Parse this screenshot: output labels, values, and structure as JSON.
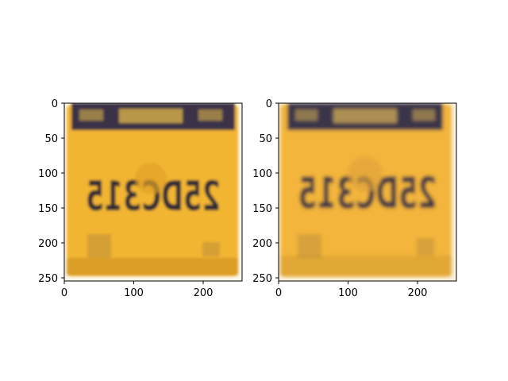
{
  "figure": {
    "panels": [
      {
        "id": "left",
        "image": {
          "plate_text": "25DC315",
          "plate_text_mirrored": true,
          "colors": {
            "plate": "#f2b531",
            "plate_shadow": "#c98a1c",
            "banner": "#3a3347",
            "banner_text": "#d8b04a",
            "text": "#2e2a35"
          }
        },
        "x_ticks": [
          "0",
          "100",
          "200"
        ],
        "y_ticks": [
          "0",
          "50",
          "100",
          "150",
          "200",
          "250"
        ]
      },
      {
        "id": "right",
        "image": {
          "plate_text": "25DC315",
          "plate_text_mirrored": true,
          "colors": {
            "plate": "#f3b53b",
            "plate_shadow": "#d19a32",
            "banner": "#3b3548",
            "banner_text": "#c9a656",
            "text": "#3b3443"
          }
        },
        "x_ticks": [
          "0",
          "100",
          "200"
        ],
        "y_ticks": [
          "0",
          "50",
          "100",
          "150",
          "200",
          "250"
        ]
      }
    ],
    "x_range": [
      0,
      256
    ],
    "y_range": [
      0,
      256
    ],
    "y_inverted": true
  }
}
